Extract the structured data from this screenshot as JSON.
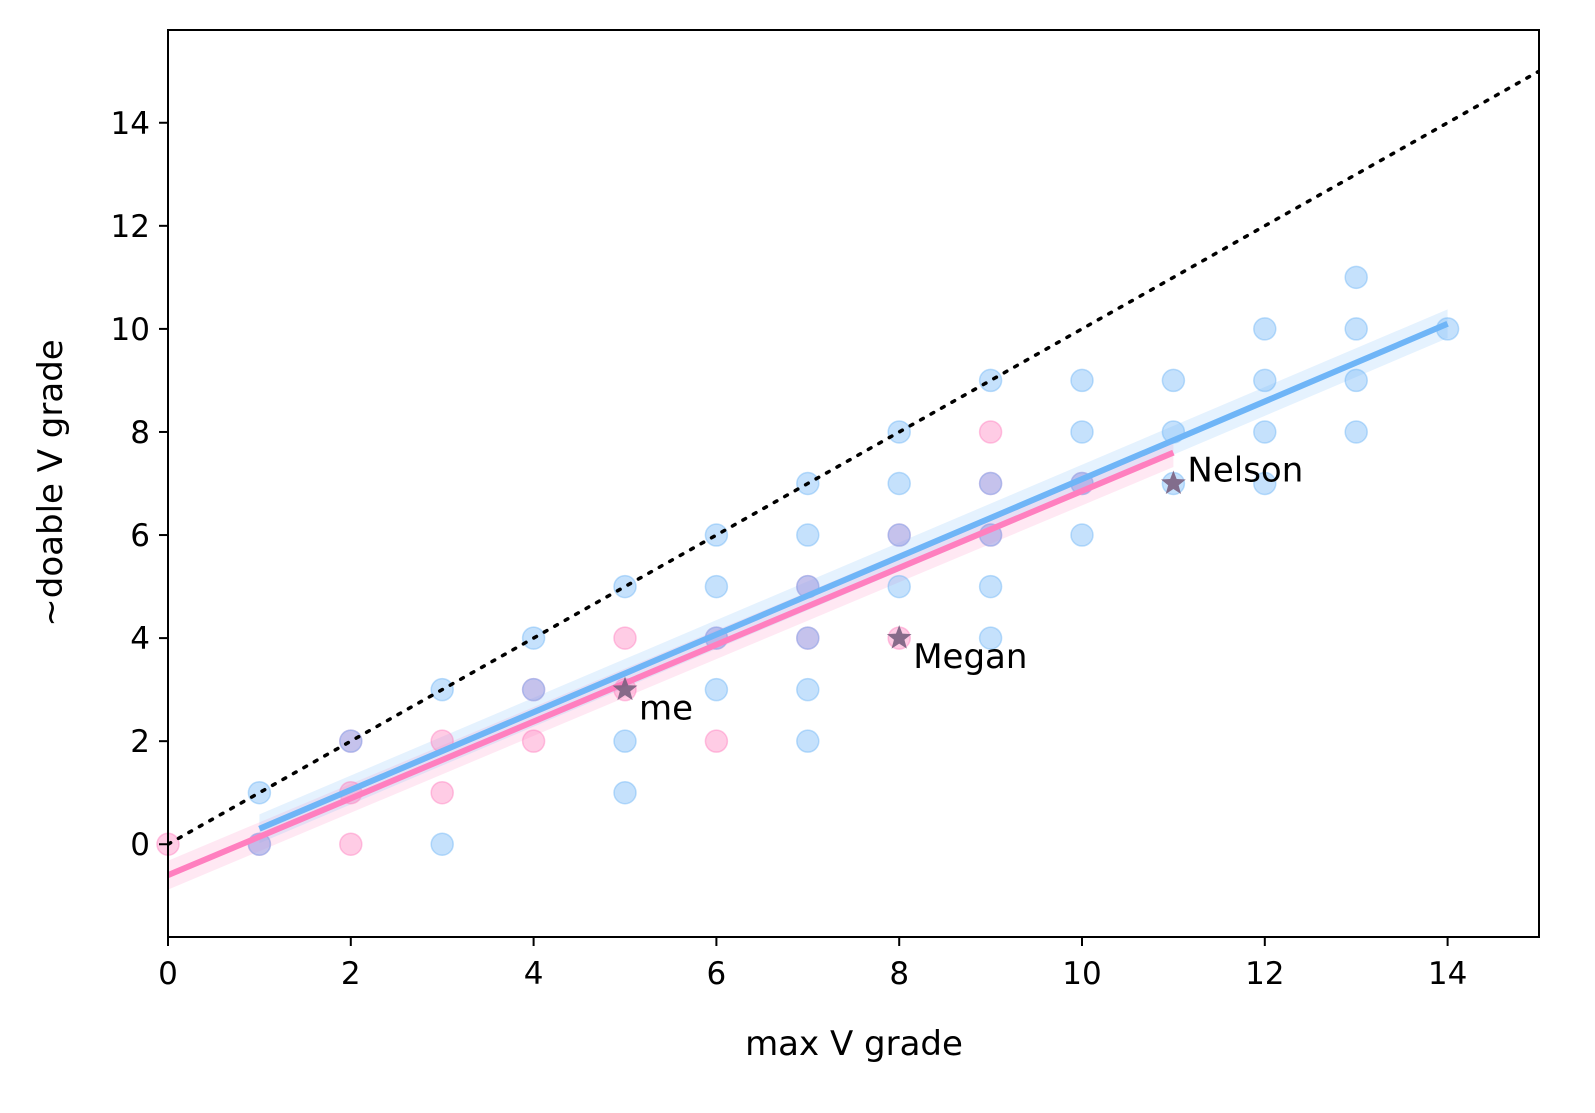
{
  "chart_data": {
    "type": "scatter",
    "xlabel": "max V grade",
    "ylabel": "~doable V grade",
    "xlim": [
      0,
      15
    ],
    "ylim": [
      -1.8,
      15.8
    ],
    "xticks": [
      0,
      2,
      4,
      6,
      8,
      10,
      12,
      14
    ],
    "yticks": [
      0,
      2,
      4,
      6,
      8,
      10,
      12,
      14
    ],
    "grid": false,
    "colors": {
      "pink": "#ff7fbf",
      "blue": "#6fb5f7",
      "purple": "#a688d8",
      "marker": "#7a6080",
      "identity_line": "#000000"
    },
    "series": [
      {
        "color_key": "pink",
        "points": [
          [
            0,
            0
          ],
          [
            1,
            0
          ],
          [
            2,
            0
          ],
          [
            2,
            1
          ],
          [
            2,
            2
          ],
          [
            3,
            1
          ],
          [
            3,
            2
          ],
          [
            4,
            2
          ],
          [
            4,
            3
          ],
          [
            5,
            3
          ],
          [
            5,
            4
          ],
          [
            6,
            2
          ],
          [
            6,
            4
          ],
          [
            7,
            4
          ],
          [
            7,
            5
          ],
          [
            8,
            4
          ],
          [
            8,
            6
          ],
          [
            9,
            6
          ],
          [
            9,
            7
          ],
          [
            9,
            8
          ],
          [
            10,
            7
          ]
        ]
      },
      {
        "color_key": "blue",
        "points": [
          [
            1,
            0
          ],
          [
            1,
            1
          ],
          [
            2,
            2
          ],
          [
            3,
            0
          ],
          [
            3,
            3
          ],
          [
            4,
            3
          ],
          [
            4,
            4
          ],
          [
            5,
            1
          ],
          [
            5,
            2
          ],
          [
            5,
            5
          ],
          [
            6,
            3
          ],
          [
            6,
            4
          ],
          [
            6,
            5
          ],
          [
            6,
            6
          ],
          [
            7,
            2
          ],
          [
            7,
            3
          ],
          [
            7,
            4
          ],
          [
            7,
            5
          ],
          [
            7,
            6
          ],
          [
            7,
            7
          ],
          [
            8,
            5
          ],
          [
            8,
            6
          ],
          [
            8,
            7
          ],
          [
            8,
            8
          ],
          [
            9,
            4
          ],
          [
            9,
            5
          ],
          [
            9,
            6
          ],
          [
            9,
            7
          ],
          [
            9,
            9
          ],
          [
            10,
            6
          ],
          [
            10,
            7
          ],
          [
            10,
            8
          ],
          [
            10,
            9
          ],
          [
            11,
            7
          ],
          [
            11,
            8
          ],
          [
            11,
            9
          ],
          [
            12,
            7
          ],
          [
            12,
            8
          ],
          [
            12,
            9
          ],
          [
            12,
            10
          ],
          [
            13,
            8
          ],
          [
            13,
            9
          ],
          [
            13,
            10
          ],
          [
            13,
            11
          ],
          [
            14,
            10
          ]
        ]
      }
    ],
    "regression_lines": [
      {
        "color_key": "pink",
        "x": [
          0,
          11
        ],
        "y": [
          -0.6,
          7.6
        ]
      },
      {
        "color_key": "blue",
        "x": [
          1,
          14
        ],
        "y": [
          0.3,
          10.1
        ]
      }
    ],
    "identity_line": {
      "x": [
        0,
        15
      ],
      "y": [
        0,
        15
      ],
      "style": "dotted"
    },
    "annotations": [
      {
        "text": "me",
        "x": 5,
        "y": 3
      },
      {
        "text": "Megan",
        "x": 8,
        "y": 4
      },
      {
        "text": "Nelson",
        "x": 11,
        "y": 7
      }
    ]
  }
}
